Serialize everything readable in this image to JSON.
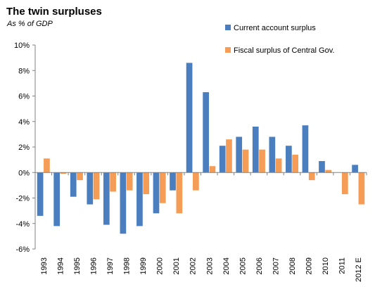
{
  "chart_data": {
    "type": "bar",
    "title": "The twin surpluses",
    "subtitle": "As % of GDP",
    "xlabel": "",
    "ylabel": "",
    "ylim": [
      -6,
      10
    ],
    "yticks": [
      -6,
      -4,
      -2,
      0,
      2,
      4,
      6,
      8,
      10
    ],
    "ytick_labels": [
      "-6%",
      "-4%",
      "-2%",
      "0%",
      "2%",
      "4%",
      "6%",
      "8%",
      "10%"
    ],
    "grid": false,
    "legend": "top-right",
    "categories": [
      "1993",
      "1994",
      "1995",
      "1996",
      "1997",
      "1998",
      "1999",
      "2000",
      "2001",
      "2002",
      "2003",
      "2004",
      "2005",
      "2006",
      "2007",
      "2008",
      "2009",
      "2010",
      "2011",
      "2012 E"
    ],
    "series": [
      {
        "name": "Current account surplus",
        "color": "#4a7ebf",
        "values": [
          -3.4,
          -4.2,
          -1.9,
          -2.5,
          -4.1,
          -4.8,
          -4.2,
          -3.2,
          -1.4,
          8.6,
          6.3,
          2.1,
          2.8,
          3.6,
          2.8,
          2.1,
          3.7,
          0.9,
          null,
          0.6
        ]
      },
      {
        "name": "Fiscal surplus of Central Gov.",
        "color": "#f59d56",
        "values": [
          1.1,
          -0.1,
          -0.6,
          -2.1,
          -1.5,
          -1.4,
          -1.7,
          -2.4,
          -3.2,
          -1.4,
          0.5,
          2.6,
          1.8,
          1.8,
          1.1,
          1.4,
          -0.6,
          0.2,
          -1.7,
          -2.5
        ]
      }
    ]
  }
}
